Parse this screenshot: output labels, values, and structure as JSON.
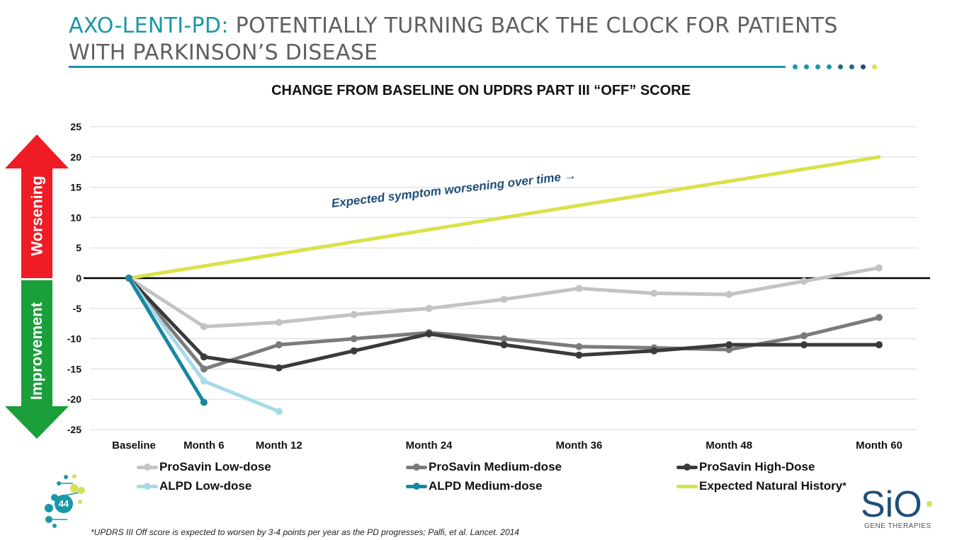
{
  "slide": {
    "title_highlight": "AXO-LENTI-PD:",
    "title_rest": " POTENTIALLY TURNING BACK THE CLOCK FOR PATIENTS WITH PARKINSON’S DISEASE",
    "page_number": "44",
    "footnote": "*UPDRS III Off score is expected to worsen by 3-4 points per year as the PD progresses; Palfi, et al. Lancet. 2014",
    "brand_logo_text": "SiO",
    "brand_subtitle": "GENE THERAPIES",
    "colors": {
      "accent": "#1a97a8",
      "title_gray": "#5f5f5f",
      "worsening_red": "#ee1c25",
      "improvement_green": "#1a9f3a"
    },
    "decor_dots": [
      "#1a97a8",
      "#1a97a8",
      "#1a97a8",
      "#1a97a8",
      "#236b85",
      "#236b85",
      "#1f4e79",
      "#d4e157"
    ]
  },
  "side_arrows": {
    "up_label": "Worsening",
    "down_label": "Improvement"
  },
  "chart_data": {
    "type": "line",
    "title": "CHANGE FROM BASELINE ON UPDRS PART III “OFF” SCORE",
    "xlabel": "",
    "ylabel": "",
    "x_ticks": [
      {
        "label": "Baseline",
        "month": 0
      },
      {
        "label": "Month 6",
        "month": 6
      },
      {
        "label": "Month 12",
        "month": 12
      },
      {
        "label": "Month 24",
        "month": 24
      },
      {
        "label": "Month 36",
        "month": 36
      },
      {
        "label": "Month 48",
        "month": 48
      },
      {
        "label": "Month 60",
        "month": 60
      }
    ],
    "xlim": [
      0,
      60
    ],
    "ylim": [
      -25,
      25
    ],
    "y_ticks": [
      25,
      20,
      15,
      10,
      5,
      0,
      -5,
      -10,
      -15,
      -20,
      -25
    ],
    "grid": true,
    "legend_position": "bottom",
    "annotation": "Expected symptom worsening over time →",
    "series": [
      {
        "name": "ProSavin Low-dose",
        "color": "#c3c3c3",
        "marker": true,
        "points": [
          [
            0,
            0
          ],
          [
            6,
            -8
          ],
          [
            12,
            -7.3
          ],
          [
            18,
            -6
          ],
          [
            24,
            -5
          ],
          [
            30,
            -3.5
          ],
          [
            36,
            -1.7
          ],
          [
            42,
            -2.5
          ],
          [
            48,
            -2.7
          ],
          [
            54,
            -0.5
          ],
          [
            60,
            1.7
          ]
        ]
      },
      {
        "name": "ProSavin Medium-dose",
        "color": "#7b7b7b",
        "marker": true,
        "points": [
          [
            0,
            0
          ],
          [
            6,
            -15
          ],
          [
            12,
            -11
          ],
          [
            18,
            -10
          ],
          [
            24,
            -9
          ],
          [
            30,
            -10
          ],
          [
            36,
            -11.3
          ],
          [
            42,
            -11.5
          ],
          [
            48,
            -11.8
          ],
          [
            54,
            -9.5
          ],
          [
            60,
            -6.5
          ]
        ]
      },
      {
        "name": "ProSavin High-Dose",
        "color": "#3a3a3a",
        "marker": true,
        "points": [
          [
            0,
            0
          ],
          [
            6,
            -13
          ],
          [
            12,
            -14.8
          ],
          [
            18,
            -12
          ],
          [
            24,
            -9.2
          ],
          [
            30,
            -11
          ],
          [
            36,
            -12.7
          ],
          [
            42,
            -12
          ],
          [
            48,
            -11
          ],
          [
            54,
            -11
          ],
          [
            60,
            -11
          ]
        ]
      },
      {
        "name": "ALPD Low-dose",
        "color": "#a6dbe6",
        "marker": true,
        "points": [
          [
            0,
            0
          ],
          [
            6,
            -17
          ],
          [
            12,
            -22
          ]
        ]
      },
      {
        "name": "ALPD Medium-dose",
        "color": "#1887a0",
        "marker": true,
        "points": [
          [
            0,
            0
          ],
          [
            6,
            -20.5
          ]
        ]
      },
      {
        "name": "Expected Natural History",
        "color": "#dbe14a",
        "marker": false,
        "points": [
          [
            0,
            0
          ],
          [
            60,
            20
          ]
        ]
      }
    ],
    "legend_note_marker": "*"
  }
}
